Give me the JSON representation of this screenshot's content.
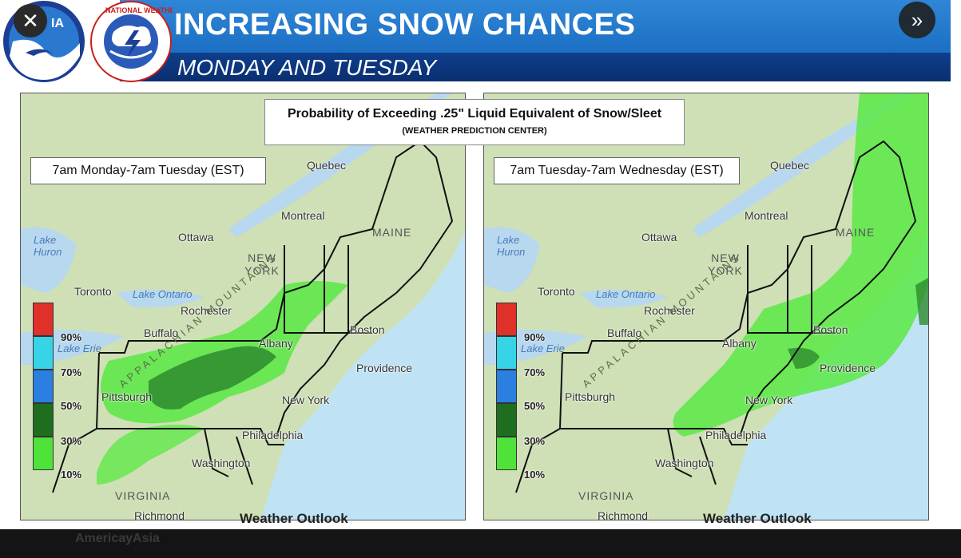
{
  "header": {
    "title": "INCREASING SNOW CHANCES",
    "subtitle": "MONDAY AND TUESDAY",
    "noaa_logo_text": "IA",
    "nws_logo_text": "NATIONAL WEATHER SERVICE",
    "banner_color": "#1c6fc3"
  },
  "controls": {
    "close_icon": "close-icon",
    "close_glyph": "✕",
    "next_icon": "double-chevron-right-icon",
    "next_glyph": "»"
  },
  "product": {
    "title": "Probability of Exceeding .25\" Liquid Equivalent of Snow/Sleet",
    "source": "(WEATHER PREDICTION CENTER)"
  },
  "panels": [
    {
      "period": "7am Monday-7am Tuesday (EST)",
      "legend_labels": [
        "90%",
        "70%",
        "50%",
        "30%",
        "10%"
      ],
      "places": [
        "Quebec",
        "Montreal",
        "Ottawa",
        "Toronto",
        "Rochester",
        "Buffalo",
        "Albany",
        "Boston",
        "Providence",
        "New York",
        "Philadelphia",
        "Washington",
        "Pittsburgh",
        "Richmond"
      ],
      "state_labels": [
        "NEW YORK",
        "MAINE",
        "VIRGINIA"
      ],
      "water_labels": [
        "Lake Huron",
        "Lake Ontario",
        "Lake Erie"
      ],
      "mountain_label": "APPALACHIAN MOUNTAINS",
      "outlook": "Weather Outlook"
    },
    {
      "period": "7am Tuesday-7am Wednesday (EST)",
      "legend_labels": [
        "90%",
        "70%",
        "50%",
        "30%",
        "10%"
      ],
      "places": [
        "Quebec",
        "Montreal",
        "Ottawa",
        "Toronto",
        "Rochester",
        "Buffalo",
        "Albany",
        "Boston",
        "Providence",
        "New York",
        "Philadelphia",
        "Washington",
        "Pittsburgh",
        "Richmond"
      ],
      "state_labels": [
        "NEW YORK",
        "MAINE",
        "VIRGINIA"
      ],
      "water_labels": [
        "Lake Huron",
        "Lake Ontario",
        "Lake Erie"
      ],
      "mountain_label": "APPALACHIAN MOUNTAINS",
      "outlook": "Weather Outlook"
    }
  ],
  "legend_colors": [
    "#e0302a",
    "#36d4e6",
    "#2a7fe0",
    "#1f6e1f",
    "#4fe33a"
  ],
  "footer": {
    "account": "AmericayAsia"
  }
}
